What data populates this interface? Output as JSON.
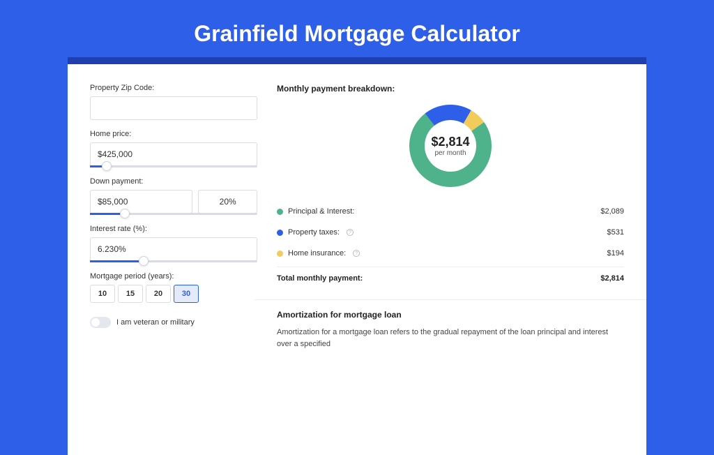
{
  "page": {
    "title": "Grainfield Mortgage Calculator",
    "bg_color": "#2e5fe8",
    "card_bg": "#ffffff",
    "card_shadow": "#1f3fb0"
  },
  "form": {
    "zip": {
      "label": "Property Zip Code:",
      "value": ""
    },
    "home_price": {
      "label": "Home price:",
      "value": "$425,000",
      "slider_pct": 10
    },
    "down_payment": {
      "label": "Down payment:",
      "value": "$85,000",
      "pct": "20%",
      "slider_pct": 21
    },
    "interest_rate": {
      "label": "Interest rate (%):",
      "value": "6.230%",
      "slider_pct": 32
    },
    "period": {
      "label": "Mortgage period (years):",
      "options": [
        "10",
        "15",
        "20",
        "30"
      ],
      "selected": "30"
    },
    "veteran": {
      "label": "I am veteran or military",
      "checked": false
    }
  },
  "breakdown": {
    "title": "Monthly payment breakdown:",
    "donut_amount": "$2,814",
    "donut_sub": "per month",
    "items": [
      {
        "label": "Principal & Interest:",
        "value": "$2,089",
        "color": "#4eb28a",
        "has_info": false
      },
      {
        "label": "Property taxes:",
        "value": "$531",
        "color": "#2e5fe8",
        "has_info": true
      },
      {
        "label": "Home insurance:",
        "value": "$194",
        "color": "#f2cc5b",
        "has_info": true
      }
    ],
    "total_label": "Total monthly payment:",
    "total_value": "$2,814"
  },
  "donut": {
    "radius": 48,
    "stroke_width": 22,
    "segments": [
      {
        "color": "#f2cc5b",
        "pct": 6.9
      },
      {
        "color": "#4eb28a",
        "pct": 74.2
      },
      {
        "color": "#2e5fe8",
        "pct": 18.9
      }
    ],
    "rotation_start": -60
  },
  "amortization": {
    "title": "Amortization for mortgage loan",
    "text": "Amortization for a mortgage loan refers to the gradual repayment of the loan principal and interest over a specified"
  }
}
